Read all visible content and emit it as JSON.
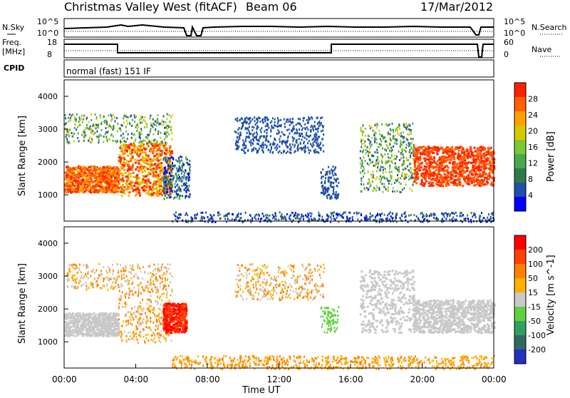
{
  "header": {
    "title": "Christmas Valley West (fitACF)",
    "beam": "Beam 06",
    "date": "17/Mar/2012"
  },
  "panels": {
    "noise": {
      "left_label": "N.Sky",
      "ticks_left": [
        "10^5",
        "10^0"
      ],
      "ticks_right": [
        "10^5",
        "10^0"
      ],
      "right_label": "N.Search"
    },
    "freq": {
      "left_label_1": "Freq.",
      "left_label_2": "[MHz]",
      "ticks_left": [
        "18",
        "8"
      ],
      "ticks_right": [
        "60",
        "0"
      ],
      "right_label": "Nave"
    },
    "cpid": {
      "label": "CPID",
      "text": "normal (fast) 151 IF"
    }
  },
  "chart_data": [
    {
      "type": "heatmap",
      "name": "power",
      "ylabel": "Slant Range [km]",
      "yticks": [
        "4000",
        "3000",
        "2000",
        "1000"
      ],
      "colorbar_label": "Power [dB]",
      "colorbar_ticks": [
        "28",
        "24",
        "20",
        "16",
        "12",
        "8",
        "4"
      ],
      "colors": [
        "#0000ff",
        "#1f4fa8",
        "#2f7a4a",
        "#4aa84a",
        "#7dc832",
        "#d8c800",
        "#ffa000",
        "#ff6000",
        "#ff2000"
      ]
    },
    {
      "type": "heatmap",
      "name": "velocity",
      "ylabel": "Slant Range [km]",
      "yticks": [
        "4000",
        "3000",
        "2000",
        "1000"
      ],
      "colorbar_label": "Velocity [m s^-1]",
      "colorbar_ticks": [
        "200",
        "100",
        "50",
        "15",
        "-15",
        "-50",
        "-100",
        "-200"
      ],
      "colors": [
        "#2030c0",
        "#2f6a60",
        "#2fa060",
        "#60d040",
        "#c8c8c8",
        "#ffb000",
        "#ff8000",
        "#ff4000",
        "#ff0000"
      ]
    }
  ],
  "time_axis": {
    "label": "Time UT",
    "ticks": [
      "00:00",
      "04:00",
      "08:00",
      "12:00",
      "16:00",
      "20:00",
      "00:00"
    ]
  }
}
